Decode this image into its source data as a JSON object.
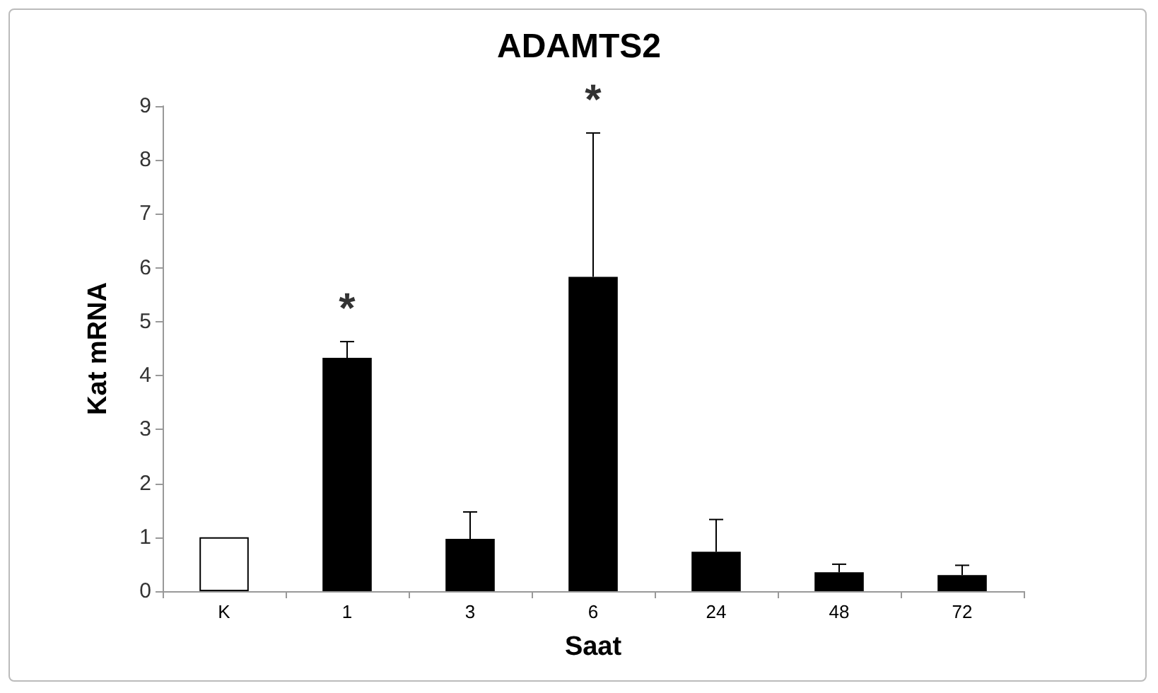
{
  "chart_data": {
    "type": "bar",
    "title": "ADAMTS2",
    "xlabel": "Saat",
    "ylabel": "Kat mRNA",
    "categories": [
      "K",
      "1",
      "3",
      "6",
      "24",
      "48",
      "72"
    ],
    "values": [
      1.0,
      4.33,
      0.97,
      5.83,
      0.73,
      0.35,
      0.3
    ],
    "colors": [
      "#ffffff",
      "#000000",
      "#000000",
      "#000000",
      "#000000",
      "#000000",
      "#000000"
    ],
    "errors": [
      null,
      [
        4.33,
        4.63
      ],
      [
        0.97,
        1.47
      ],
      [
        5.83,
        8.5
      ],
      [
        0.73,
        1.33
      ],
      [
        0.35,
        0.5
      ],
      [
        0.3,
        0.48
      ]
    ],
    "annotations": [
      {
        "text": "*",
        "x": "1",
        "y": 4.63
      },
      {
        "text": "*",
        "x": "6",
        "y": 8.5
      }
    ],
    "ylim": [
      0,
      9
    ],
    "yticks": [
      0,
      1,
      2,
      3,
      4,
      5,
      6,
      7,
      8,
      9
    ],
    "grid": false
  }
}
